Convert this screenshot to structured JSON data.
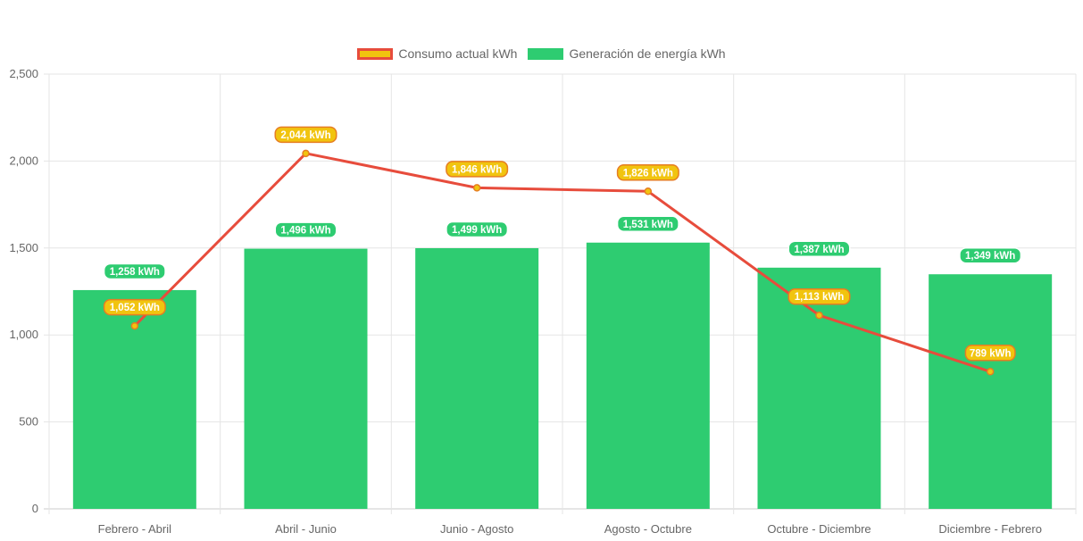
{
  "chart_data": {
    "type": "bar",
    "categories": [
      "Febrero - Abril",
      "Abril - Junio",
      "Junio - Agosto",
      "Agosto - Octubre",
      "Octubre - Diciembre",
      "Diciembre - Febrero"
    ],
    "series": [
      {
        "name": "Consumo actual kWh",
        "type": "line",
        "values": [
          1052,
          2044,
          1846,
          1826,
          1113,
          789
        ],
        "labels": [
          "1,052 kWh",
          "2,044 kWh",
          "1,846 kWh",
          "1,826 kWh",
          "1,113 kWh",
          "789 kWh"
        ],
        "color": "#e74c3c",
        "label_color": "#f1c40f"
      },
      {
        "name": "Generación de energía kWh",
        "type": "bar",
        "values": [
          1258,
          1496,
          1499,
          1531,
          1387,
          1349
        ],
        "labels": [
          "1,258 kWh",
          "1,496 kWh",
          "1,499 kWh",
          "1,531 kWh",
          "1,387 kWh",
          "1,349 kWh"
        ],
        "color": "#2ecc71"
      }
    ],
    "ylim": [
      0,
      2500
    ],
    "yticks": [
      0,
      500,
      1000,
      1500,
      2000,
      2500
    ],
    "ytick_labels": [
      "0",
      "500",
      "1,000",
      "1,500",
      "2,000",
      "2,500"
    ],
    "grid": true,
    "legend_position": "top-center"
  }
}
